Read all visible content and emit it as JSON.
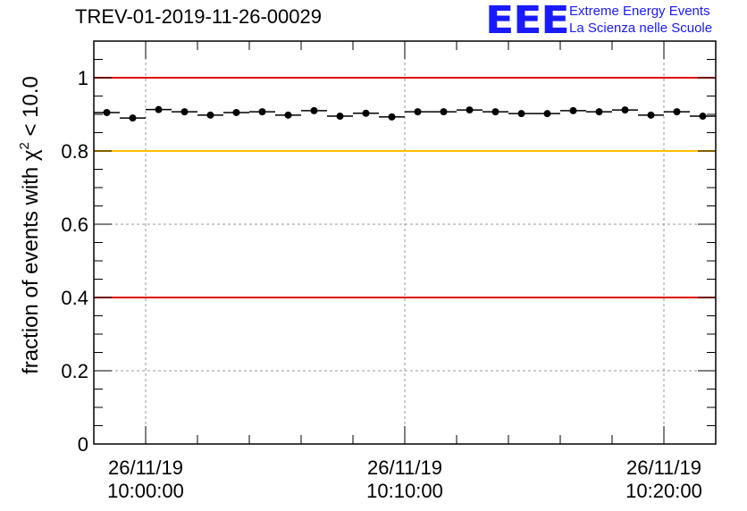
{
  "header": {
    "title": "TREV-01-2019-11-26-00029",
    "logo": "EEE",
    "logo_line1": "Extreme Energy Events",
    "logo_line2": "La Scienza nelle Scuole"
  },
  "chart_data": {
    "type": "scatter",
    "title": "TREV-01-2019-11-26-00029",
    "ylabel": "fraction of events with χ² < 10.0",
    "ylabel_parts": {
      "pre": "fraction of events with ",
      "sym": "χ",
      "sup": "2",
      "post": " < 10.0"
    },
    "xlabel": "",
    "ylim": [
      0,
      1.1
    ],
    "yticks": [
      0,
      0.2,
      0.4,
      0.6,
      0.8,
      1
    ],
    "yticklabels": [
      "0",
      "0.2",
      "0.4",
      "0.6",
      "0.8",
      "1"
    ],
    "xlim_minutes": [
      -2,
      22
    ],
    "xticks": [
      {
        "minute": 0,
        "date": "26/11/19",
        "time": "10:00:00"
      },
      {
        "minute": 10,
        "date": "26/11/19",
        "time": "10:10:00"
      },
      {
        "minute": 20,
        "date": "26/11/19",
        "time": "10:20:00"
      }
    ],
    "grid": true,
    "reference_lines": [
      {
        "y": 1.0,
        "color": "#e00000"
      },
      {
        "y": 0.8,
        "color": "#ffc000"
      },
      {
        "y": 0.4,
        "color": "#e00000"
      }
    ],
    "bin_width_minutes": 1,
    "series": [
      {
        "name": "fraction",
        "x_minutes": [
          -1.5,
          -0.5,
          0.5,
          1.5,
          2.5,
          3.5,
          4.5,
          5.5,
          6.5,
          7.5,
          8.5,
          9.5,
          10.5,
          11.5,
          12.5,
          13.5,
          14.5,
          15.5,
          16.5,
          17.5,
          18.5,
          19.5,
          20.5,
          21.5
        ],
        "values": [
          0.905,
          0.89,
          0.913,
          0.907,
          0.898,
          0.905,
          0.907,
          0.898,
          0.91,
          0.895,
          0.903,
          0.893,
          0.907,
          0.907,
          0.912,
          0.907,
          0.902,
          0.902,
          0.91,
          0.907,
          0.912,
          0.898,
          0.907,
          0.895
        ],
        "color": "#000000"
      }
    ]
  }
}
